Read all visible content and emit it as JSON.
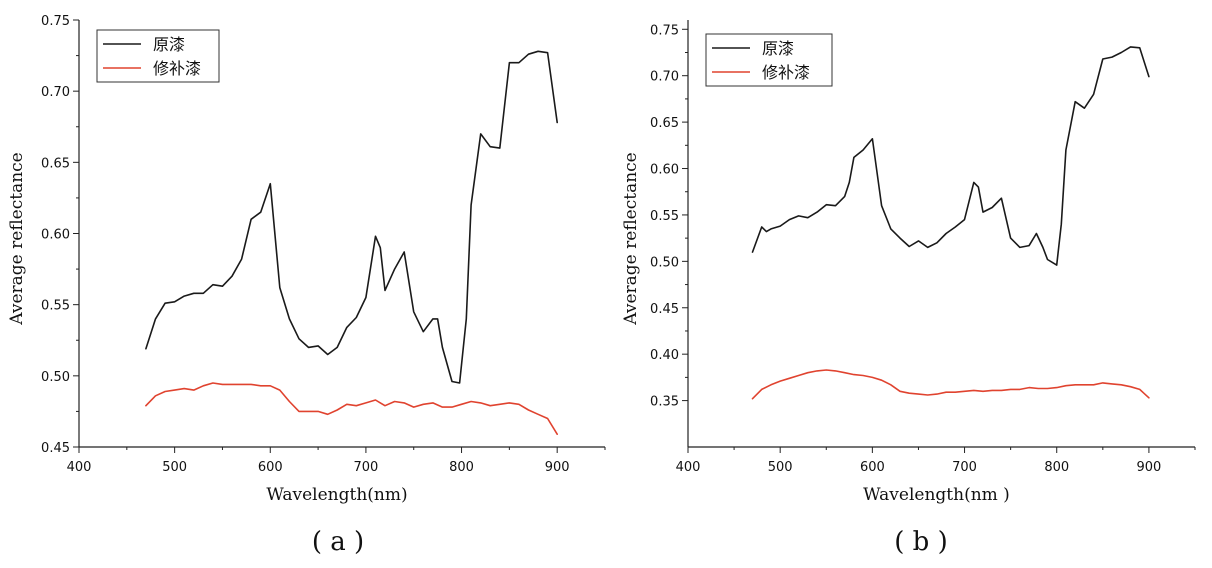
{
  "chart_data": [
    {
      "type": "line",
      "panel_label": "( a )",
      "xlabel": "Wavelength(nm)",
      "ylabel": "Average reflectance",
      "xlim": [
        400,
        950
      ],
      "ylim": [
        0.45,
        0.75
      ],
      "xticks": [
        400,
        500,
        600,
        700,
        800,
        900
      ],
      "yticks": [
        0.45,
        0.5,
        0.55,
        0.6,
        0.65,
        0.7,
        0.75
      ],
      "legend_position": "top-left",
      "series": [
        {
          "name": "原漆",
          "color": "#1a1a1a",
          "x": [
            470,
            480,
            490,
            500,
            510,
            520,
            530,
            540,
            550,
            560,
            570,
            580,
            590,
            600,
            610,
            620,
            630,
            640,
            650,
            660,
            670,
            680,
            690,
            700,
            710,
            715,
            720,
            730,
            740,
            750,
            760,
            770,
            775,
            780,
            790,
            798,
            805,
            810,
            820,
            830,
            840,
            850,
            860,
            870,
            880,
            890,
            900
          ],
          "y": [
            0.519,
            0.54,
            0.551,
            0.552,
            0.556,
            0.558,
            0.558,
            0.564,
            0.563,
            0.57,
            0.582,
            0.61,
            0.615,
            0.635,
            0.562,
            0.54,
            0.526,
            0.52,
            0.521,
            0.515,
            0.52,
            0.534,
            0.541,
            0.555,
            0.598,
            0.59,
            0.56,
            0.575,
            0.587,
            0.545,
            0.531,
            0.54,
            0.54,
            0.52,
            0.496,
            0.495,
            0.54,
            0.62,
            0.67,
            0.661,
            0.66,
            0.72,
            0.72,
            0.726,
            0.728,
            0.727,
            0.678
          ]
        },
        {
          "name": "修补漆",
          "color": "#e0432f",
          "x": [
            470,
            480,
            490,
            500,
            510,
            520,
            530,
            540,
            550,
            560,
            570,
            580,
            590,
            600,
            610,
            620,
            630,
            640,
            650,
            660,
            670,
            680,
            690,
            700,
            710,
            720,
            730,
            740,
            750,
            760,
            770,
            780,
            790,
            800,
            810,
            820,
            830,
            840,
            850,
            860,
            870,
            880,
            890,
            900
          ],
          "y": [
            0.479,
            0.486,
            0.489,
            0.49,
            0.491,
            0.49,
            0.493,
            0.495,
            0.494,
            0.494,
            0.494,
            0.494,
            0.493,
            0.493,
            0.49,
            0.482,
            0.475,
            0.475,
            0.475,
            0.473,
            0.476,
            0.48,
            0.479,
            0.481,
            0.483,
            0.479,
            0.482,
            0.481,
            0.478,
            0.48,
            0.481,
            0.478,
            0.478,
            0.48,
            0.482,
            0.481,
            0.479,
            0.48,
            0.481,
            0.48,
            0.476,
            0.473,
            0.47,
            0.459
          ]
        }
      ]
    },
    {
      "type": "line",
      "panel_label": "( b )",
      "xlabel": "Wavelength(nm )",
      "ylabel": "Average reflectance",
      "xlim": [
        400,
        950
      ],
      "ylim": [
        0.3,
        0.76
      ],
      "xticks": [
        400,
        500,
        600,
        700,
        800,
        900
      ],
      "yticks": [
        0.35,
        0.4,
        0.45,
        0.5,
        0.55,
        0.6,
        0.65,
        0.7,
        0.75
      ],
      "legend_position": "top-left",
      "series": [
        {
          "name": "原漆",
          "color": "#1a1a1a",
          "x": [
            470,
            480,
            485,
            490,
            500,
            510,
            520,
            530,
            540,
            550,
            560,
            570,
            575,
            580,
            590,
            600,
            610,
            620,
            630,
            640,
            650,
            660,
            670,
            680,
            690,
            700,
            710,
            715,
            720,
            730,
            740,
            750,
            760,
            770,
            778,
            785,
            790,
            800,
            805,
            810,
            820,
            830,
            840,
            850,
            860,
            870,
            880,
            890,
            900
          ],
          "y": [
            0.51,
            0.537,
            0.532,
            0.535,
            0.538,
            0.545,
            0.549,
            0.547,
            0.553,
            0.561,
            0.56,
            0.57,
            0.585,
            0.612,
            0.62,
            0.632,
            0.56,
            0.535,
            0.525,
            0.516,
            0.522,
            0.515,
            0.52,
            0.53,
            0.537,
            0.545,
            0.585,
            0.58,
            0.553,
            0.558,
            0.568,
            0.525,
            0.515,
            0.517,
            0.53,
            0.515,
            0.502,
            0.496,
            0.54,
            0.62,
            0.672,
            0.665,
            0.68,
            0.718,
            0.72,
            0.725,
            0.731,
            0.73,
            0.699
          ]
        },
        {
          "name": "修补漆",
          "color": "#e0432f",
          "x": [
            470,
            480,
            490,
            500,
            510,
            520,
            530,
            540,
            550,
            560,
            570,
            580,
            590,
            600,
            610,
            620,
            630,
            640,
            650,
            660,
            670,
            680,
            690,
            700,
            710,
            720,
            730,
            740,
            750,
            760,
            770,
            780,
            790,
            800,
            810,
            820,
            830,
            840,
            850,
            860,
            870,
            880,
            890,
            900
          ],
          "y": [
            0.352,
            0.362,
            0.367,
            0.371,
            0.374,
            0.377,
            0.38,
            0.382,
            0.383,
            0.382,
            0.38,
            0.378,
            0.377,
            0.375,
            0.372,
            0.367,
            0.36,
            0.358,
            0.357,
            0.356,
            0.357,
            0.359,
            0.359,
            0.36,
            0.361,
            0.36,
            0.361,
            0.361,
            0.362,
            0.362,
            0.364,
            0.363,
            0.363,
            0.364,
            0.366,
            0.367,
            0.367,
            0.367,
            0.369,
            0.368,
            0.367,
            0.365,
            0.362,
            0.353
          ]
        }
      ]
    }
  ]
}
